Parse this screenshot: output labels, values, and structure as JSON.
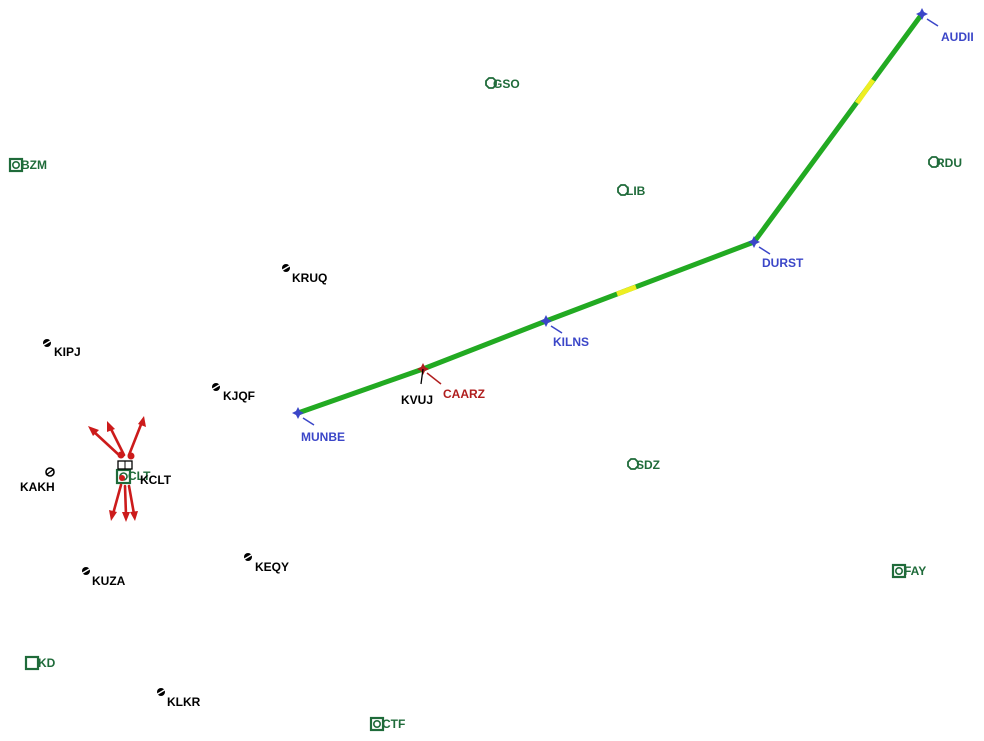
{
  "colors": {
    "route_green": "#22aa22",
    "route_yellow": "#eeee22",
    "navaid_green": "#1f6b3a",
    "airport_black": "#000000",
    "waypoint_blue": "#3b46c8",
    "current_waypoint_red": "#b01e1e",
    "traffic_red": "#cc1b1b"
  },
  "route": {
    "waypoints": [
      "MUNBE",
      "CAARZ",
      "KILNS",
      "DURST",
      "AUDII"
    ],
    "current_waypoint": "CAARZ"
  },
  "navaids": [
    {
      "id": "GSO"
    },
    {
      "id": "BZM"
    },
    {
      "id": "LIB"
    },
    {
      "id": "RDU"
    },
    {
      "id": "SDZ"
    },
    {
      "id": "CLT"
    },
    {
      "id": "FAY"
    },
    {
      "id": "KD"
    },
    {
      "id": "CTF"
    }
  ],
  "airports": [
    {
      "id": "KRUQ"
    },
    {
      "id": "KIPJ"
    },
    {
      "id": "KJQF"
    },
    {
      "id": "KVUJ"
    },
    {
      "id": "KAKH"
    },
    {
      "id": "KCLT"
    },
    {
      "id": "KEQY"
    },
    {
      "id": "KUZA"
    },
    {
      "id": "KLKR"
    }
  ],
  "icons": {
    "navaid": "navaid-icon",
    "airport": "airport-icon",
    "waypoint": "waypoint-icon",
    "traffic": "traffic-arrow-icon"
  }
}
